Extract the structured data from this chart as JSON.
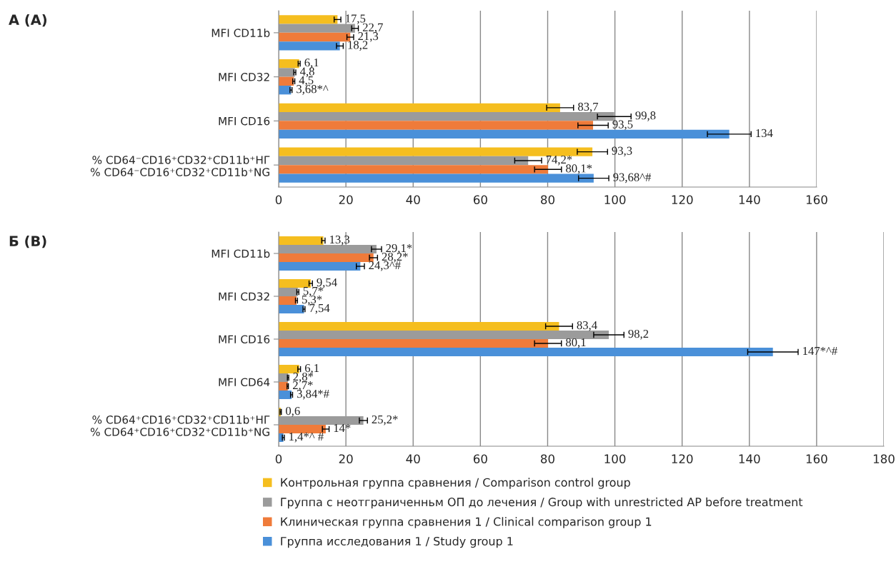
{
  "chart_data": [
    {
      "type": "bar",
      "orientation": "horizontal",
      "title": "А (A)",
      "categories": [
        "MFI CD11b",
        "MFI CD32",
        "MFI CD16",
        "% CD64⁻CD16⁺CD32⁺CD11b⁺НГ\n% CD64⁻CD16⁺CD32⁺CD11b⁺NG"
      ],
      "xlim": [
        0,
        160
      ],
      "xticks": [
        0,
        20,
        40,
        60,
        80,
        100,
        120,
        140,
        160
      ],
      "grid": "x",
      "legend": false,
      "series": [
        {
          "color": "#f5be1f",
          "values": [
            17.5,
            6.1,
            83.7,
            93.3
          ],
          "errors": [
            1,
            0.3,
            4,
            4.5
          ],
          "value_labels": [
            "17,5",
            "6,1",
            "83,7",
            "93,3"
          ]
        },
        {
          "color": "#9b9b9b",
          "values": [
            22.7,
            4.8,
            99.8,
            74.2
          ],
          "errors": [
            1,
            0.3,
            5,
            4
          ],
          "value_labels": [
            "22,7",
            "4,8",
            "99,8",
            "74,2*"
          ]
        },
        {
          "color": "#ef7b3a",
          "values": [
            21.3,
            4.5,
            93.5,
            80.1
          ],
          "errors": [
            1,
            0.3,
            4.5,
            4
          ],
          "value_labels": [
            "21,3",
            "4,5",
            "93,5",
            "80,1*"
          ]
        },
        {
          "color": "#4a90d9",
          "values": [
            18.2,
            3.68,
            134,
            93.68
          ],
          "errors": [
            1,
            0.3,
            6.5,
            4.5
          ],
          "value_labels": [
            "18,2",
            "3,68*^",
            "134",
            "93,68^#"
          ]
        }
      ]
    },
    {
      "type": "bar",
      "orientation": "horizontal",
      "title": "Б (B)",
      "categories": [
        "MFI CD11b",
        "MFI CD32",
        "MFI CD16",
        "MFI CD64",
        "% CD64⁺CD16⁺CD32⁺CD11b⁺НГ\n% CD64⁺CD16⁺CD32⁺CD11b⁺NG"
      ],
      "xlim": [
        0,
        180
      ],
      "xticks": [
        0,
        20,
        40,
        60,
        80,
        100,
        120,
        140,
        160,
        180
      ],
      "grid": "x",
      "legend": "bottom",
      "series": [
        {
          "name": "Контрольная группа сравнения / Comparison control group",
          "color": "#f5be1f",
          "values": [
            13.3,
            9.54,
            83.4,
            6.1,
            0.6
          ],
          "errors": [
            0.5,
            0.5,
            4,
            0.4,
            0.2
          ],
          "value_labels": [
            "13,3",
            "9,54",
            "83,4",
            "6,1",
            "0,6"
          ]
        },
        {
          "name": "Группа с неотграниченньм ОП до лечения / Group with unrestricted AP before treatment",
          "color": "#9b9b9b",
          "values": [
            29.1,
            5.7,
            98.2,
            2.8,
            25.2
          ],
          "errors": [
            1.5,
            0.3,
            4.5,
            0.2,
            1.2
          ],
          "value_labels": [
            "29,1*",
            "5,7*",
            "98,2",
            "2,8*",
            "25,2*"
          ]
        },
        {
          "name": "Клиническая группа сравнения 1 / Clinical comparison group 1",
          "color": "#ef7b3a",
          "values": [
            28.2,
            5.3,
            80.1,
            2.7,
            14
          ],
          "errors": [
            1.2,
            0.3,
            4,
            0.2,
            1
          ],
          "value_labels": [
            "28,2*",
            "5,3*",
            "80,1",
            "2,7*",
            "14*"
          ]
        },
        {
          "name": "Группа исследования 1 / Study group 1",
          "color": "#4a90d9",
          "values": [
            24.3,
            7.54,
            147,
            3.84,
            1.4
          ],
          "errors": [
            1.2,
            0.3,
            7.5,
            0.3,
            0.3
          ],
          "value_labels": [
            "24,3^#",
            "7,54",
            "147*^#",
            "3,84*#",
            "1,4*^ #"
          ]
        }
      ]
    }
  ]
}
